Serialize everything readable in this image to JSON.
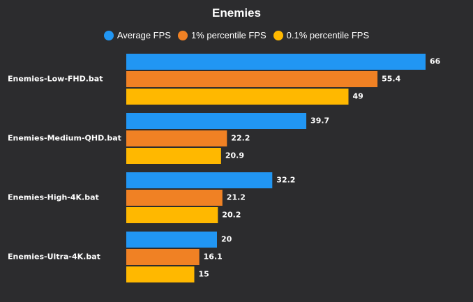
{
  "chart_data": {
    "type": "bar",
    "orientation": "horizontal",
    "title": "Enemies",
    "categories": [
      "Enemies-Low-FHD.bat",
      "Enemies-Medium-QHD.bat",
      "Enemies-High-4K.bat",
      "Enemies-Ultra-4K.bat"
    ],
    "series": [
      {
        "name": "Average FPS",
        "color": "#2196f3",
        "values": [
          66,
          39.7,
          32.2,
          20
        ]
      },
      {
        "name": "1% percentile FPS",
        "color": "#f08124",
        "values": [
          55.4,
          22.2,
          21.2,
          16.1
        ]
      },
      {
        "name": "0.1% percentile FPS",
        "color": "#ffb800",
        "values": [
          49,
          20.9,
          20.2,
          15
        ]
      }
    ],
    "value_labels": [
      [
        "66",
        "39.7",
        "32.2",
        "20"
      ],
      [
        "55.4",
        "22.2",
        "21.2",
        "16.1"
      ],
      [
        "49",
        "20.9",
        "20.2",
        "15"
      ]
    ],
    "xlim": [
      0,
      66
    ],
    "grid": false,
    "legend_position": "top-center",
    "xlabel": "",
    "ylabel": ""
  }
}
